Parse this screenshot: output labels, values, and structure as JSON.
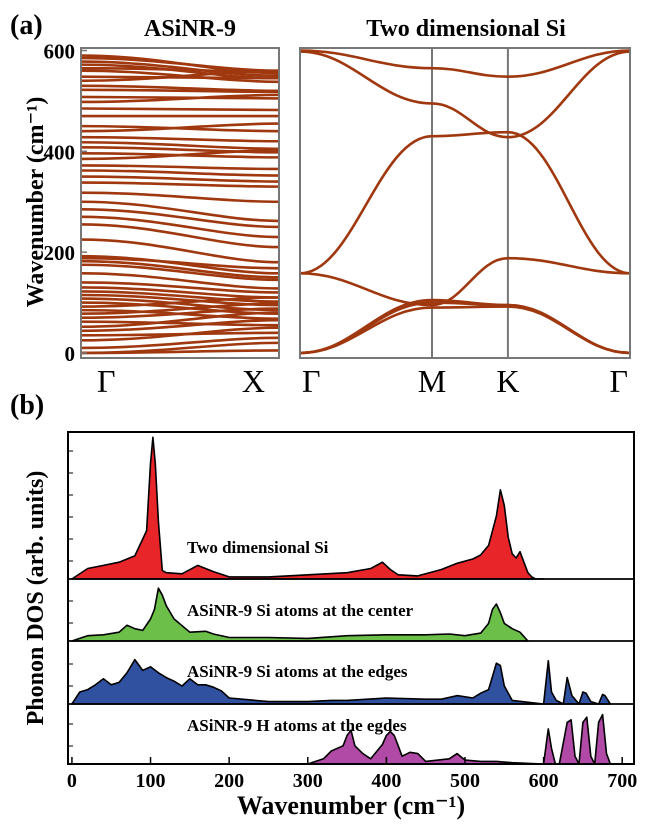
{
  "figure": {
    "panel_a_label": "(a)",
    "panel_b_label": "(b)"
  },
  "chart_data": [
    {
      "type": "line",
      "title": "ASiNR-9",
      "xlabel": "",
      "ylabel": "Wavenumber (cm⁻¹)",
      "ylim": [
        -10,
        605
      ],
      "y_ticks": [
        0,
        200,
        400,
        600
      ],
      "x_labels": [
        "Γ",
        "X"
      ],
      "grid": false,
      "series_style": "dense set of phonon branches",
      "color": "#a0380f",
      "series": [
        {
          "values": [
            590,
            555
          ]
        },
        {
          "values": [
            585,
            560
          ]
        },
        {
          "values": [
            578,
            550
          ]
        },
        {
          "values": [
            572,
            545
          ]
        },
        {
          "values": [
            565,
            558
          ]
        },
        {
          "values": [
            560,
            538
          ]
        },
        {
          "values": [
            548,
            545
          ]
        },
        {
          "values": [
            540,
            560
          ]
        },
        {
          "values": [
            530,
            520
          ]
        },
        {
          "values": [
            522,
            518
          ]
        },
        {
          "values": [
            508,
            505
          ]
        },
        {
          "values": [
            498,
            512
          ]
        },
        {
          "values": [
            485,
            482
          ]
        },
        {
          "values": [
            470,
            470
          ]
        },
        {
          "values": [
            450,
            440
          ]
        },
        {
          "values": [
            440,
            455
          ]
        },
        {
          "values": [
            428,
            420
          ]
        },
        {
          "values": [
            418,
            405
          ]
        },
        {
          "values": [
            408,
            398
          ]
        },
        {
          "values": [
            396,
            388
          ]
        },
        {
          "values": [
            385,
            402
          ]
        },
        {
          "values": [
            372,
            365
          ]
        },
        {
          "values": [
            362,
            352
          ]
        },
        {
          "values": [
            350,
            340
          ]
        },
        {
          "values": [
            338,
            330
          ]
        },
        {
          "values": [
            318,
            300
          ]
        },
        {
          "values": [
            300,
            262
          ]
        },
        {
          "values": [
            285,
            250
          ]
        },
        {
          "values": [
            270,
            230
          ]
        },
        {
          "values": [
            255,
            210
          ]
        },
        {
          "values": [
            225,
            180
          ]
        },
        {
          "values": [
            192,
            158
          ]
        },
        {
          "values": [
            188,
            168
          ]
        },
        {
          "values": [
            182,
            150
          ]
        },
        {
          "values": [
            175,
            145
          ]
        },
        {
          "values": [
            158,
            128
          ]
        },
        {
          "values": [
            140,
            120
          ]
        },
        {
          "values": [
            130,
            110
          ]
        },
        {
          "values": [
            122,
            102
          ]
        },
        {
          "values": [
            115,
            95
          ]
        },
        {
          "values": [
            108,
            85
          ]
        },
        {
          "values": [
            100,
            78
          ]
        },
        {
          "values": [
            92,
            110
          ]
        },
        {
          "values": [
            85,
            68
          ]
        },
        {
          "values": [
            78,
            98
          ]
        },
        {
          "values": [
            70,
            88
          ]
        },
        {
          "values": [
            62,
            55
          ]
        },
        {
          "values": [
            52,
            80
          ]
        },
        {
          "values": [
            44,
            65
          ]
        },
        {
          "values": [
            35,
            40
          ]
        },
        {
          "values": [
            25,
            50
          ]
        },
        {
          "values": [
            10,
            30
          ]
        },
        {
          "values": [
            0,
            20
          ]
        },
        {
          "values": [
            0,
            5
          ]
        }
      ]
    },
    {
      "type": "line",
      "title": "Two dimensional Si",
      "xlabel": "",
      "ylabel": "",
      "ylim": [
        -10,
        605
      ],
      "x_labels": [
        "Γ",
        "M",
        "K",
        "Γ"
      ],
      "grid": false,
      "color": "#a0380f",
      "series": [
        {
          "points": [
            [
              0,
              600
            ],
            [
              0.4,
              565
            ],
            [
              0.63,
              548
            ],
            [
              1.0,
              600
            ]
          ]
        },
        {
          "points": [
            [
              0,
              598
            ],
            [
              0.4,
              495
            ],
            [
              0.63,
              428
            ],
            [
              1.0,
              598
            ]
          ]
        },
        {
          "points": [
            [
              0,
              158
            ],
            [
              0.4,
              430
            ],
            [
              0.63,
              438
            ],
            [
              1.0,
              158
            ]
          ]
        },
        {
          "points": [
            [
              0,
              158
            ],
            [
              0.4,
              95
            ],
            [
              0.63,
              188
            ],
            [
              1.0,
              158
            ]
          ]
        },
        {
          "points": [
            [
              0,
              0
            ],
            [
              0.4,
              90
            ],
            [
              0.63,
              92
            ],
            [
              1.0,
              0
            ]
          ]
        },
        {
          "points": [
            [
              0,
              0
            ],
            [
              0.4,
              100
            ],
            [
              0.63,
              95
            ],
            [
              1.0,
              0
            ]
          ]
        },
        {
          "points": [
            [
              0,
              0
            ],
            [
              0.4,
              105
            ],
            [
              0.63,
              95
            ],
            [
              1.0,
              0
            ]
          ]
        }
      ]
    },
    {
      "type": "area",
      "xlabel": "Wavenumber (cm⁻¹)",
      "ylabel": "Phonon DOS (arb. units)",
      "xlim": [
        -5,
        715
      ],
      "x_ticks": [
        0,
        100,
        200,
        300,
        400,
        500,
        600,
        700
      ],
      "grid": false,
      "series": [
        {
          "name": "Two dimensional Si",
          "color": "#e8262a",
          "x": [
            0,
            20,
            40,
            60,
            80,
            90,
            95,
            100,
            103,
            106,
            110,
            115,
            120,
            140,
            160,
            180,
            200,
            250,
            300,
            350,
            380,
            395,
            405,
            415,
            440,
            470,
            490,
            510,
            520,
            530,
            540,
            545,
            550,
            555,
            560,
            565,
            570,
            575,
            580,
            585,
            590,
            600
          ],
          "values": [
            0,
            1.0,
            1.3,
            1.6,
            2.2,
            3.8,
            4.6,
            11.0,
            13.5,
            11.0,
            5.5,
            0.8,
            0.6,
            0.5,
            1.3,
            0.7,
            0.2,
            0.2,
            0.4,
            0.6,
            1.0,
            1.6,
            0.9,
            0.4,
            0.3,
            0.9,
            1.5,
            1.9,
            2.3,
            3.2,
            6.0,
            8.5,
            7.0,
            4.0,
            2.4,
            2.0,
            2.6,
            1.6,
            0.6,
            0.2,
            0,
            0
          ]
        },
        {
          "name": "ASiNR-9 Si atoms at the center",
          "color": "#6cc04a",
          "x": [
            0,
            20,
            40,
            60,
            70,
            80,
            90,
            100,
            105,
            110,
            115,
            120,
            130,
            150,
            170,
            180,
            200,
            250,
            300,
            350,
            400,
            450,
            480,
            500,
            520,
            530,
            535,
            540,
            545,
            550,
            560,
            570,
            580
          ],
          "values": [
            0,
            0.6,
            0.7,
            1.0,
            1.8,
            1.4,
            1.2,
            2.5,
            3.6,
            6.0,
            5.2,
            4.0,
            2.5,
            1.0,
            1.1,
            0.8,
            0.4,
            0.4,
            0.3,
            0.6,
            0.7,
            0.7,
            0.8,
            0.6,
            0.9,
            2.0,
            3.6,
            4.2,
            3.2,
            2.0,
            1.4,
            1.0,
            0
          ]
        },
        {
          "name": "ASiNR-9 Si atoms at the edges",
          "color": "#3050a0",
          "x": [
            0,
            10,
            20,
            30,
            40,
            50,
            60,
            70,
            80,
            90,
            100,
            110,
            120,
            130,
            140,
            150,
            160,
            170,
            180,
            190,
            200,
            250,
            300,
            330,
            350,
            400,
            450,
            470,
            490,
            510,
            520,
            530,
            540,
            545,
            550,
            560,
            600,
            606,
            610,
            616,
            625,
            630,
            636,
            645,
            650,
            654,
            660,
            670,
            675,
            678,
            685
          ],
          "values": [
            0,
            1.0,
            1.2,
            1.6,
            2.1,
            1.6,
            1.8,
            2.6,
            3.7,
            2.8,
            3.1,
            2.6,
            2.2,
            1.9,
            1.5,
            2.1,
            1.6,
            1.6,
            1.4,
            1.1,
            0.5,
            0.2,
            0.2,
            0.3,
            0.3,
            0.5,
            0.4,
            0.4,
            0.7,
            0.5,
            0.9,
            1.2,
            3.4,
            3.2,
            1.5,
            0.3,
            0,
            3.6,
            1.0,
            0.3,
            0,
            2.2,
            0.7,
            0,
            1.0,
            0.9,
            0.2,
            0,
            0.8,
            0.7,
            0
          ]
        },
        {
          "name": "ASiNR-9 H atoms at the egdes",
          "color": "#b04aa6",
          "x": [
            0,
            300,
            320,
            330,
            345,
            350,
            355,
            360,
            370,
            380,
            395,
            400,
            405,
            410,
            415,
            420,
            430,
            440,
            450,
            480,
            490,
            500,
            520,
            540,
            560,
            600,
            606,
            610,
            615,
            620,
            630,
            635,
            640,
            645,
            650,
            655,
            660,
            665,
            670,
            675,
            680,
            685,
            690
          ],
          "values": [
            0,
            0,
            0.4,
            1.0,
            1.4,
            2.2,
            2.6,
            1.4,
            0.8,
            0.4,
            1.5,
            2.2,
            2.5,
            2.2,
            1.4,
            0.6,
            0.9,
            0.8,
            0.2,
            0.4,
            0.8,
            0.3,
            0.2,
            0.2,
            0.1,
            0,
            2.7,
            1.2,
            0,
            0,
            3.2,
            3.4,
            0.6,
            0,
            3.2,
            3.6,
            0.6,
            0,
            3.2,
            3.8,
            0.8,
            0,
            0
          ]
        }
      ]
    }
  ]
}
